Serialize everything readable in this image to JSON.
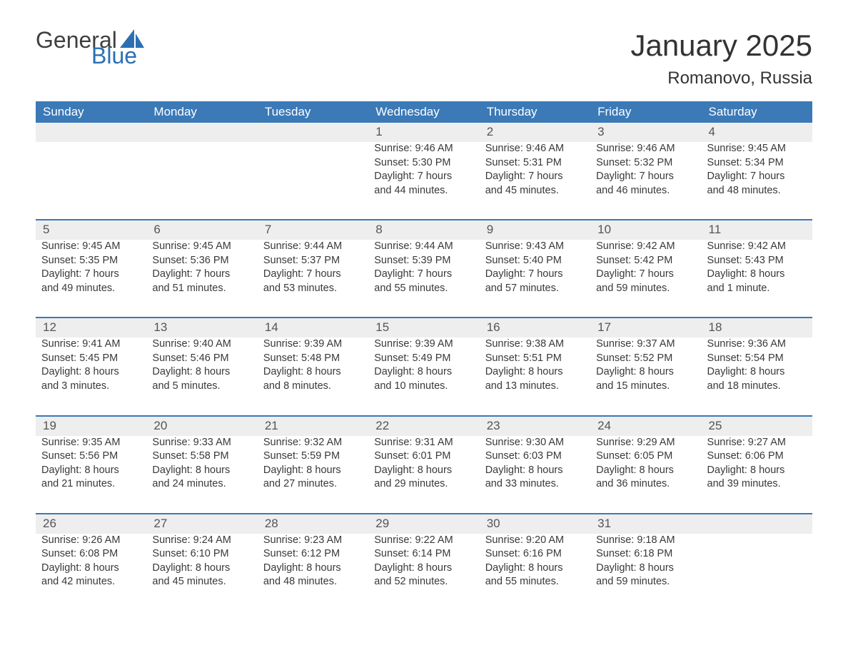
{
  "brand": {
    "word1": "General",
    "word2": "Blue",
    "color_accent": "#2b6fb3",
    "color_text": "#3f3f3f"
  },
  "title": "January 2025",
  "location": "Romanovo, Russia",
  "header_bg": "#3b79b7",
  "daynum_bg": "#eeeeee",
  "text_color": "#393939",
  "day_headers": [
    "Sunday",
    "Monday",
    "Tuesday",
    "Wednesday",
    "Thursday",
    "Friday",
    "Saturday"
  ],
  "weeks": [
    [
      null,
      null,
      null,
      {
        "n": "1",
        "sunrise": "Sunrise: 9:46 AM",
        "sunset": "Sunset: 5:30 PM",
        "dl1": "Daylight: 7 hours",
        "dl2": "and 44 minutes."
      },
      {
        "n": "2",
        "sunrise": "Sunrise: 9:46 AM",
        "sunset": "Sunset: 5:31 PM",
        "dl1": "Daylight: 7 hours",
        "dl2": "and 45 minutes."
      },
      {
        "n": "3",
        "sunrise": "Sunrise: 9:46 AM",
        "sunset": "Sunset: 5:32 PM",
        "dl1": "Daylight: 7 hours",
        "dl2": "and 46 minutes."
      },
      {
        "n": "4",
        "sunrise": "Sunrise: 9:45 AM",
        "sunset": "Sunset: 5:34 PM",
        "dl1": "Daylight: 7 hours",
        "dl2": "and 48 minutes."
      }
    ],
    [
      {
        "n": "5",
        "sunrise": "Sunrise: 9:45 AM",
        "sunset": "Sunset: 5:35 PM",
        "dl1": "Daylight: 7 hours",
        "dl2": "and 49 minutes."
      },
      {
        "n": "6",
        "sunrise": "Sunrise: 9:45 AM",
        "sunset": "Sunset: 5:36 PM",
        "dl1": "Daylight: 7 hours",
        "dl2": "and 51 minutes."
      },
      {
        "n": "7",
        "sunrise": "Sunrise: 9:44 AM",
        "sunset": "Sunset: 5:37 PM",
        "dl1": "Daylight: 7 hours",
        "dl2": "and 53 minutes."
      },
      {
        "n": "8",
        "sunrise": "Sunrise: 9:44 AM",
        "sunset": "Sunset: 5:39 PM",
        "dl1": "Daylight: 7 hours",
        "dl2": "and 55 minutes."
      },
      {
        "n": "9",
        "sunrise": "Sunrise: 9:43 AM",
        "sunset": "Sunset: 5:40 PM",
        "dl1": "Daylight: 7 hours",
        "dl2": "and 57 minutes."
      },
      {
        "n": "10",
        "sunrise": "Sunrise: 9:42 AM",
        "sunset": "Sunset: 5:42 PM",
        "dl1": "Daylight: 7 hours",
        "dl2": "and 59 minutes."
      },
      {
        "n": "11",
        "sunrise": "Sunrise: 9:42 AM",
        "sunset": "Sunset: 5:43 PM",
        "dl1": "Daylight: 8 hours",
        "dl2": "and 1 minute."
      }
    ],
    [
      {
        "n": "12",
        "sunrise": "Sunrise: 9:41 AM",
        "sunset": "Sunset: 5:45 PM",
        "dl1": "Daylight: 8 hours",
        "dl2": "and 3 minutes."
      },
      {
        "n": "13",
        "sunrise": "Sunrise: 9:40 AM",
        "sunset": "Sunset: 5:46 PM",
        "dl1": "Daylight: 8 hours",
        "dl2": "and 5 minutes."
      },
      {
        "n": "14",
        "sunrise": "Sunrise: 9:39 AM",
        "sunset": "Sunset: 5:48 PM",
        "dl1": "Daylight: 8 hours",
        "dl2": "and 8 minutes."
      },
      {
        "n": "15",
        "sunrise": "Sunrise: 9:39 AM",
        "sunset": "Sunset: 5:49 PM",
        "dl1": "Daylight: 8 hours",
        "dl2": "and 10 minutes."
      },
      {
        "n": "16",
        "sunrise": "Sunrise: 9:38 AM",
        "sunset": "Sunset: 5:51 PM",
        "dl1": "Daylight: 8 hours",
        "dl2": "and 13 minutes."
      },
      {
        "n": "17",
        "sunrise": "Sunrise: 9:37 AM",
        "sunset": "Sunset: 5:52 PM",
        "dl1": "Daylight: 8 hours",
        "dl2": "and 15 minutes."
      },
      {
        "n": "18",
        "sunrise": "Sunrise: 9:36 AM",
        "sunset": "Sunset: 5:54 PM",
        "dl1": "Daylight: 8 hours",
        "dl2": "and 18 minutes."
      }
    ],
    [
      {
        "n": "19",
        "sunrise": "Sunrise: 9:35 AM",
        "sunset": "Sunset: 5:56 PM",
        "dl1": "Daylight: 8 hours",
        "dl2": "and 21 minutes."
      },
      {
        "n": "20",
        "sunrise": "Sunrise: 9:33 AM",
        "sunset": "Sunset: 5:58 PM",
        "dl1": "Daylight: 8 hours",
        "dl2": "and 24 minutes."
      },
      {
        "n": "21",
        "sunrise": "Sunrise: 9:32 AM",
        "sunset": "Sunset: 5:59 PM",
        "dl1": "Daylight: 8 hours",
        "dl2": "and 27 minutes."
      },
      {
        "n": "22",
        "sunrise": "Sunrise: 9:31 AM",
        "sunset": "Sunset: 6:01 PM",
        "dl1": "Daylight: 8 hours",
        "dl2": "and 29 minutes."
      },
      {
        "n": "23",
        "sunrise": "Sunrise: 9:30 AM",
        "sunset": "Sunset: 6:03 PM",
        "dl1": "Daylight: 8 hours",
        "dl2": "and 33 minutes."
      },
      {
        "n": "24",
        "sunrise": "Sunrise: 9:29 AM",
        "sunset": "Sunset: 6:05 PM",
        "dl1": "Daylight: 8 hours",
        "dl2": "and 36 minutes."
      },
      {
        "n": "25",
        "sunrise": "Sunrise: 9:27 AM",
        "sunset": "Sunset: 6:06 PM",
        "dl1": "Daylight: 8 hours",
        "dl2": "and 39 minutes."
      }
    ],
    [
      {
        "n": "26",
        "sunrise": "Sunrise: 9:26 AM",
        "sunset": "Sunset: 6:08 PM",
        "dl1": "Daylight: 8 hours",
        "dl2": "and 42 minutes."
      },
      {
        "n": "27",
        "sunrise": "Sunrise: 9:24 AM",
        "sunset": "Sunset: 6:10 PM",
        "dl1": "Daylight: 8 hours",
        "dl2": "and 45 minutes."
      },
      {
        "n": "28",
        "sunrise": "Sunrise: 9:23 AM",
        "sunset": "Sunset: 6:12 PM",
        "dl1": "Daylight: 8 hours",
        "dl2": "and 48 minutes."
      },
      {
        "n": "29",
        "sunrise": "Sunrise: 9:22 AM",
        "sunset": "Sunset: 6:14 PM",
        "dl1": "Daylight: 8 hours",
        "dl2": "and 52 minutes."
      },
      {
        "n": "30",
        "sunrise": "Sunrise: 9:20 AM",
        "sunset": "Sunset: 6:16 PM",
        "dl1": "Daylight: 8 hours",
        "dl2": "and 55 minutes."
      },
      {
        "n": "31",
        "sunrise": "Sunrise: 9:18 AM",
        "sunset": "Sunset: 6:18 PM",
        "dl1": "Daylight: 8 hours",
        "dl2": "and 59 minutes."
      },
      null
    ]
  ]
}
